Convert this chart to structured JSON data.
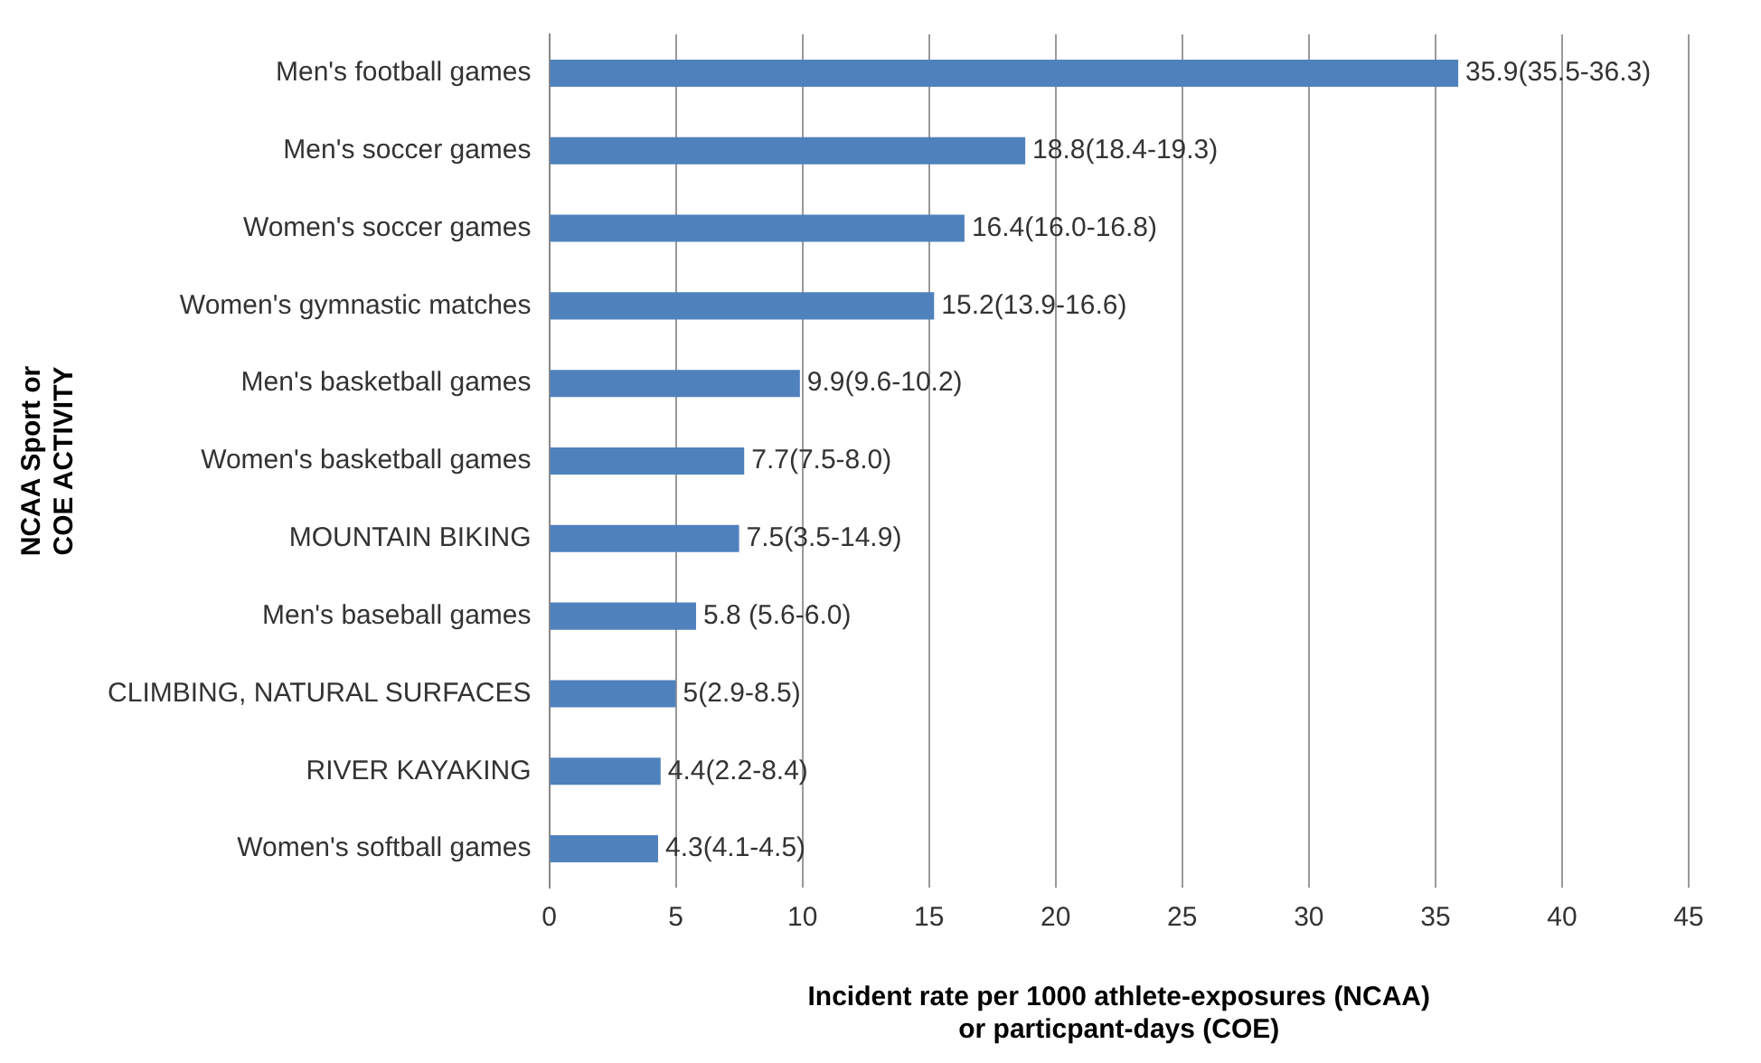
{
  "chart_data": {
    "type": "bar",
    "orientation": "horizontal",
    "xlabel": "Incident rate per 1000 athlete-exposures (NCAA)\nor particpant-days (COE)",
    "ylabel": "NCAA Sport or\nCOE ACTIVITY",
    "categories": [
      "Men's football games",
      "Men's soccer games",
      "Women's soccer games",
      "Women's gymnastic matches",
      "Men's basketball games",
      "Women's basketball games",
      "MOUNTAIN BIKING",
      "Men's baseball games",
      "CLIMBING, NATURAL SURFACES",
      "RIVER KAYAKING",
      "Women's softball games"
    ],
    "values": [
      35.9,
      18.8,
      16.4,
      15.2,
      9.9,
      7.7,
      7.5,
      5.8,
      5,
      4.4,
      4.3
    ],
    "value_labels": [
      "35.9(35.5-36.3)",
      "18.8(18.4-19.3)",
      "16.4(16.0-16.8)",
      "15.2(13.9-16.6)",
      "9.9(9.6-10.2)",
      "7.7(7.5-8.0)",
      "7.5(3.5-14.9)",
      "5.8 (5.6-6.0)",
      "5(2.9-8.5)",
      "4.4(2.2-8.4)",
      "4.3(4.1-4.5)"
    ],
    "color": "#4f81bd",
    "xlim": [
      0,
      45
    ],
    "xticks": [
      0,
      5,
      10,
      15,
      20,
      25,
      30,
      35,
      40,
      45
    ],
    "grid": "x",
    "legend": false
  }
}
